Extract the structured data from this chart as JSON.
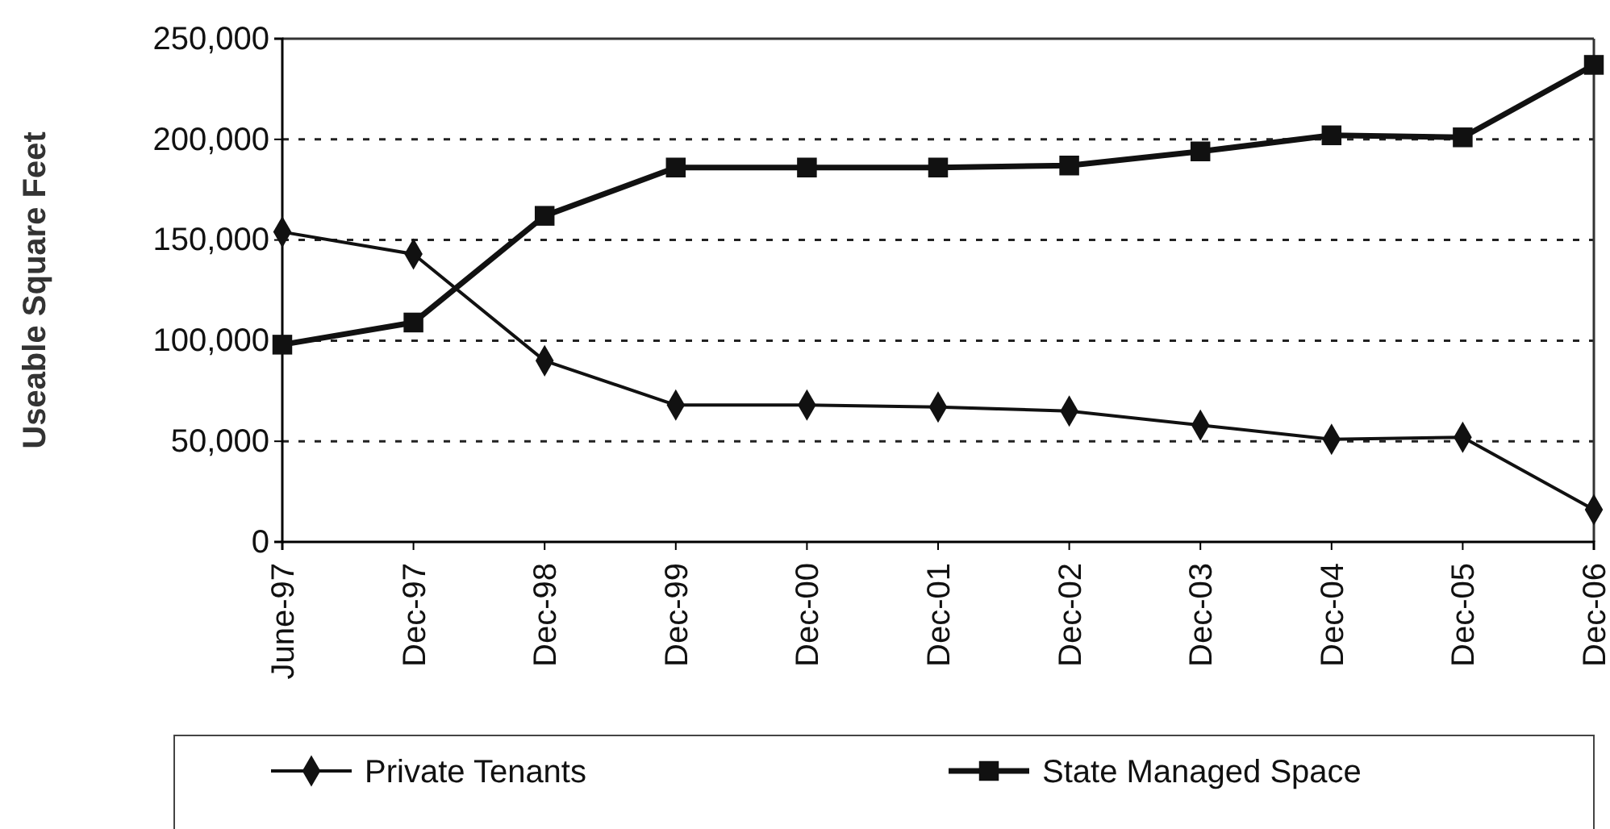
{
  "chart_data": {
    "type": "line",
    "ylabel": "Useable Square Feet",
    "categories": [
      "June-97",
      "Dec-97",
      "Dec-98",
      "Dec-99",
      "Dec-00",
      "Dec-01",
      "Dec-02",
      "Dec-03",
      "Dec-04",
      "Dec-05",
      "Dec-06"
    ],
    "series": [
      {
        "name": "Private Tenants",
        "color": "#111111",
        "marker": "diamond",
        "values": [
          154000,
          143000,
          90000,
          68000,
          68000,
          67000,
          65000,
          58000,
          51000,
          52000,
          16000
        ]
      },
      {
        "name": "State Managed Space",
        "color": "#111111",
        "marker": "square",
        "values": [
          98000,
          109000,
          162000,
          186000,
          186000,
          186000,
          187000,
          194000,
          202000,
          201000,
          237000
        ]
      }
    ],
    "ylim": [
      0,
      250000
    ],
    "yticks": [
      {
        "value": 0,
        "label": "0"
      },
      {
        "value": 50000,
        "label": "50,000"
      },
      {
        "value": 100000,
        "label": "100,000"
      },
      {
        "value": 150000,
        "label": "150,000"
      },
      {
        "value": 200000,
        "label": "200,000"
      },
      {
        "value": 250000,
        "label": "250,000"
      }
    ],
    "grid": "y",
    "legend": "bottom",
    "line_style": "solid"
  }
}
